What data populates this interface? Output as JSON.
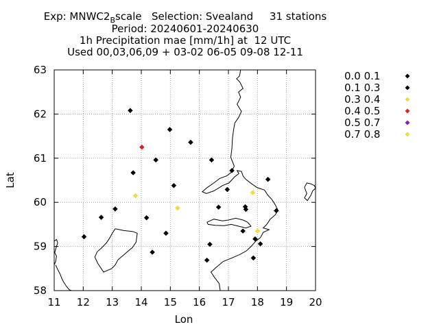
{
  "title": {
    "line1_pre": "Exp: MNWC2",
    "line1_sub": "B",
    "line1_post": "scale   Selection: Svealand     31 stations",
    "line2": "Period: 20240601-20240630",
    "line3": "1h Precipitation mae [mm/1h] at  12 UTC",
    "line4": "Used 00,03,06,09 + 03-02 06-05 09-08 12-11"
  },
  "chart_data": {
    "type": "scatter",
    "xlabel": "Lon",
    "ylabel": "Lat",
    "xlim": [
      11,
      20
    ],
    "ylim": [
      58,
      63
    ],
    "xticks": [
      11,
      12,
      13,
      14,
      15,
      16,
      17,
      18,
      19,
      20
    ],
    "yticks": [
      58,
      59,
      60,
      61,
      62,
      63
    ],
    "grid": true,
    "legend_position": "outside-right",
    "classes": [
      {
        "label": "0.0 0.1",
        "color": "#000000"
      },
      {
        "label": "0.1 0.3",
        "color": "#000000"
      },
      {
        "label": "0.3 0.4",
        "color": "#f0dc3c"
      },
      {
        "label": "0.4 0.5",
        "color": "#e0201c"
      },
      {
        "label": "0.5 0.7",
        "color": "#8020c0"
      },
      {
        "label": "0.7 0.8",
        "color": "#f0dc3c"
      }
    ],
    "points": [
      {
        "lon": 13.62,
        "lat": 62.08,
        "cls": 1
      },
      {
        "lon": 14.02,
        "lat": 61.25,
        "cls": 3
      },
      {
        "lon": 14.98,
        "lat": 61.65,
        "cls": 1
      },
      {
        "lon": 15.7,
        "lat": 61.36,
        "cls": 1
      },
      {
        "lon": 14.5,
        "lat": 60.96,
        "cls": 1
      },
      {
        "lon": 16.42,
        "lat": 60.96,
        "cls": 1
      },
      {
        "lon": 13.72,
        "lat": 60.67,
        "cls": 1
      },
      {
        "lon": 17.12,
        "lat": 60.72,
        "cls": 1
      },
      {
        "lon": 18.36,
        "lat": 60.52,
        "cls": 1
      },
      {
        "lon": 15.12,
        "lat": 60.38,
        "cls": 1
      },
      {
        "lon": 16.96,
        "lat": 60.29,
        "cls": 1
      },
      {
        "lon": 13.8,
        "lat": 60.15,
        "cls": 2
      },
      {
        "lon": 17.84,
        "lat": 60.22,
        "cls": 5
      },
      {
        "lon": 16.66,
        "lat": 59.89,
        "cls": 1
      },
      {
        "lon": 17.58,
        "lat": 59.9,
        "cls": 1
      },
      {
        "lon": 17.6,
        "lat": 59.84,
        "cls": 1
      },
      {
        "lon": 15.25,
        "lat": 59.87,
        "cls": 2
      },
      {
        "lon": 13.1,
        "lat": 59.85,
        "cls": 1
      },
      {
        "lon": 18.65,
        "lat": 59.81,
        "cls": 1
      },
      {
        "lon": 12.62,
        "lat": 59.66,
        "cls": 1
      },
      {
        "lon": 14.18,
        "lat": 59.65,
        "cls": 1
      },
      {
        "lon": 17.5,
        "lat": 59.35,
        "cls": 1
      },
      {
        "lon": 18.0,
        "lat": 59.35,
        "cls": 2
      },
      {
        "lon": 14.85,
        "lat": 59.3,
        "cls": 1
      },
      {
        "lon": 12.03,
        "lat": 59.22,
        "cls": 1
      },
      {
        "lon": 17.92,
        "lat": 59.17,
        "cls": 1
      },
      {
        "lon": 18.1,
        "lat": 59.06,
        "cls": 1
      },
      {
        "lon": 16.36,
        "lat": 59.05,
        "cls": 1
      },
      {
        "lon": 14.38,
        "lat": 58.87,
        "cls": 1
      },
      {
        "lon": 17.86,
        "lat": 58.74,
        "cls": 1
      },
      {
        "lon": 16.26,
        "lat": 58.69,
        "cls": 1
      }
    ]
  },
  "coastlines": [
    [
      [
        17.42,
        63.0
      ],
      [
        17.38,
        62.86
      ],
      [
        17.28,
        62.8
      ],
      [
        17.4,
        62.72
      ],
      [
        17.5,
        62.58
      ],
      [
        17.35,
        62.5
      ],
      [
        17.42,
        62.38
      ],
      [
        17.3,
        62.22
      ],
      [
        17.45,
        62.06
      ],
      [
        17.35,
        61.92
      ],
      [
        17.22,
        61.8
      ],
      [
        17.18,
        61.65
      ],
      [
        17.14,
        61.45
      ],
      [
        17.12,
        61.22
      ],
      [
        17.08,
        61.02
      ],
      [
        17.2,
        60.82
      ],
      [
        17.1,
        60.68
      ],
      [
        16.94,
        60.6
      ],
      [
        16.7,
        60.54
      ],
      [
        16.5,
        60.44
      ],
      [
        16.28,
        60.34
      ],
      [
        16.1,
        60.24
      ],
      [
        16.24,
        60.2
      ],
      [
        16.5,
        60.26
      ],
      [
        16.8,
        60.38
      ],
      [
        17.02,
        60.44
      ],
      [
        17.22,
        60.58
      ],
      [
        17.36,
        60.65
      ],
      [
        17.3,
        60.72
      ],
      [
        17.45,
        60.7
      ],
      [
        17.5,
        60.6
      ],
      [
        17.6,
        60.52
      ],
      [
        17.8,
        60.42
      ],
      [
        18.0,
        60.33
      ],
      [
        18.24,
        60.28
      ],
      [
        18.36,
        60.16
      ],
      [
        18.5,
        60.06
      ],
      [
        18.6,
        59.96
      ],
      [
        18.7,
        59.83
      ],
      [
        18.62,
        59.72
      ],
      [
        18.44,
        59.62
      ],
      [
        18.32,
        59.5
      ],
      [
        18.2,
        59.42
      ],
      [
        18.4,
        59.38
      ],
      [
        18.2,
        59.32
      ],
      [
        18.1,
        59.2
      ],
      [
        17.94,
        59.12
      ],
      [
        17.78,
        59.0
      ],
      [
        17.62,
        58.9
      ],
      [
        17.4,
        58.82
      ],
      [
        17.12,
        58.74
      ],
      [
        16.82,
        58.66
      ],
      [
        16.6,
        58.54
      ],
      [
        16.4,
        58.42
      ],
      [
        16.52,
        58.3
      ],
      [
        16.68,
        58.16
      ],
      [
        16.72,
        58.0
      ]
    ],
    [
      [
        11.0,
        59.12
      ],
      [
        11.08,
        59.16
      ],
      [
        11.12,
        59.08
      ],
      [
        11.06,
        58.96
      ],
      [
        11.02,
        58.86
      ],
      [
        11.08,
        58.78
      ],
      [
        11.05,
        58.66
      ],
      [
        11.0,
        58.58
      ]
    ],
    [
      [
        11.05,
        58.58
      ],
      [
        11.12,
        58.48
      ],
      [
        11.2,
        58.38
      ],
      [
        11.26,
        58.28
      ],
      [
        11.32,
        58.2
      ],
      [
        11.42,
        58.1
      ],
      [
        11.52,
        58.02
      ],
      [
        11.6,
        58.0
      ]
    ],
    [
      [
        19.62,
        60.34
      ],
      [
        19.7,
        60.44
      ],
      [
        19.84,
        60.42
      ],
      [
        19.96,
        60.38
      ],
      [
        20.0,
        60.32
      ],
      [
        19.9,
        60.26
      ],
      [
        19.84,
        60.16
      ],
      [
        19.72,
        60.04
      ],
      [
        19.62,
        60.1
      ],
      [
        19.7,
        60.2
      ],
      [
        19.62,
        60.34
      ]
    ],
    [
      [
        16.26,
        59.55
      ],
      [
        16.5,
        59.62
      ],
      [
        16.8,
        59.58
      ],
      [
        17.0,
        59.6
      ],
      [
        17.25,
        59.64
      ],
      [
        17.5,
        59.6
      ],
      [
        17.66,
        59.55
      ],
      [
        17.78,
        59.46
      ],
      [
        17.6,
        59.42
      ],
      [
        17.35,
        59.46
      ],
      [
        17.1,
        59.5
      ],
      [
        16.85,
        59.47
      ],
      [
        16.55,
        59.48
      ],
      [
        16.3,
        59.5
      ],
      [
        16.26,
        59.55
      ]
    ],
    [
      [
        13.1,
        59.4
      ],
      [
        13.4,
        59.36
      ],
      [
        13.7,
        59.34
      ],
      [
        13.86,
        59.3
      ],
      [
        13.82,
        59.1
      ],
      [
        13.7,
        58.98
      ],
      [
        13.52,
        58.88
      ],
      [
        13.38,
        58.8
      ],
      [
        13.2,
        58.7
      ],
      [
        13.1,
        58.58
      ],
      [
        12.98,
        58.5
      ],
      [
        12.84,
        58.46
      ],
      [
        12.7,
        58.42
      ],
      [
        12.62,
        58.5
      ],
      [
        12.5,
        58.62
      ],
      [
        12.4,
        58.76
      ],
      [
        12.48,
        58.88
      ],
      [
        12.62,
        58.96
      ],
      [
        12.8,
        59.08
      ],
      [
        12.92,
        59.2
      ],
      [
        13.0,
        59.3
      ],
      [
        13.1,
        59.4
      ]
    ]
  ]
}
